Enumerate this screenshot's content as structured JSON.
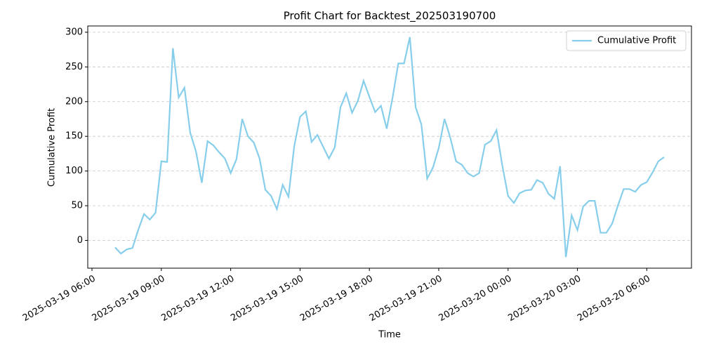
{
  "chart_data": {
    "type": "line",
    "title": "Profit Chart for Backtest_202503190700",
    "x_label": "Time",
    "y_label": "Cumulative Profit",
    "x": [
      "2025-03-19 07:00",
      "2025-03-19 07:15",
      "2025-03-19 07:30",
      "2025-03-19 07:45",
      "2025-03-19 08:00",
      "2025-03-19 08:15",
      "2025-03-19 08:30",
      "2025-03-19 08:45",
      "2025-03-19 09:00",
      "2025-03-19 09:15",
      "2025-03-19 09:30",
      "2025-03-19 09:45",
      "2025-03-19 10:00",
      "2025-03-19 10:15",
      "2025-03-19 10:30",
      "2025-03-19 10:45",
      "2025-03-19 11:00",
      "2025-03-19 11:15",
      "2025-03-19 11:30",
      "2025-03-19 11:45",
      "2025-03-19 12:00",
      "2025-03-19 12:15",
      "2025-03-19 12:30",
      "2025-03-19 12:45",
      "2025-03-19 13:00",
      "2025-03-19 13:15",
      "2025-03-19 13:30",
      "2025-03-19 13:45",
      "2025-03-19 14:00",
      "2025-03-19 14:15",
      "2025-03-19 14:30",
      "2025-03-19 14:45",
      "2025-03-19 15:00",
      "2025-03-19 15:15",
      "2025-03-19 15:30",
      "2025-03-19 15:45",
      "2025-03-19 16:00",
      "2025-03-19 16:15",
      "2025-03-19 16:30",
      "2025-03-19 16:45",
      "2025-03-19 17:00",
      "2025-03-19 17:15",
      "2025-03-19 17:30",
      "2025-03-19 17:45",
      "2025-03-19 18:00",
      "2025-03-19 18:15",
      "2025-03-19 18:30",
      "2025-03-19 18:45",
      "2025-03-19 19:00",
      "2025-03-19 19:15",
      "2025-03-19 19:30",
      "2025-03-19 19:45",
      "2025-03-19 20:00",
      "2025-03-19 20:15",
      "2025-03-19 20:30",
      "2025-03-19 20:45",
      "2025-03-19 21:00",
      "2025-03-19 21:15",
      "2025-03-19 21:30",
      "2025-03-19 21:45",
      "2025-03-19 22:00",
      "2025-03-19 22:15",
      "2025-03-19 22:30",
      "2025-03-19 22:45",
      "2025-03-19 23:00",
      "2025-03-19 23:15",
      "2025-03-19 23:30",
      "2025-03-19 23:45",
      "2025-03-20 00:00",
      "2025-03-20 00:15",
      "2025-03-20 00:30",
      "2025-03-20 00:45",
      "2025-03-20 01:00",
      "2025-03-20 01:15",
      "2025-03-20 01:30",
      "2025-03-20 01:45",
      "2025-03-20 02:00",
      "2025-03-20 02:15",
      "2025-03-20 02:30",
      "2025-03-20 02:45",
      "2025-03-20 03:00",
      "2025-03-20 03:15",
      "2025-03-20 03:30",
      "2025-03-20 03:45",
      "2025-03-20 04:00",
      "2025-03-20 04:15",
      "2025-03-20 04:30",
      "2025-03-20 04:45",
      "2025-03-20 05:00",
      "2025-03-20 05:15",
      "2025-03-20 05:30",
      "2025-03-20 05:45",
      "2025-03-20 06:00",
      "2025-03-20 06:15",
      "2025-03-20 06:30",
      "2025-03-20 06:45"
    ],
    "series": [
      {
        "name": "Cumulative Profit",
        "color": "#87ceeb",
        "values": [
          -10,
          -19,
          -13,
          -11,
          15,
          38,
          30,
          40,
          114,
          113,
          277,
          206,
          220,
          155,
          128,
          83,
          143,
          137,
          127,
          118,
          97,
          117,
          175,
          150,
          141,
          118,
          73,
          64,
          45,
          80,
          63,
          136,
          178,
          186,
          142,
          152,
          135,
          118,
          134,
          192,
          212,
          184,
          201,
          230,
          207,
          185,
          194,
          161,
          205,
          255,
          255,
          293,
          192,
          167,
          89,
          105,
          133,
          175,
          148,
          114,
          109,
          97,
          92,
          97,
          138,
          143,
          159,
          108,
          64,
          54,
          68,
          72,
          73,
          87,
          83,
          67,
          60,
          107,
          -24,
          36,
          15,
          49,
          57,
          57,
          11,
          11,
          24,
          50,
          74,
          74,
          70,
          80,
          84,
          98,
          114,
          120
        ]
      }
    ],
    "xlim": [
      "2025-03-19 05:49",
      "2025-03-20 07:56"
    ],
    "xticks": [
      "2025-03-19 06:00",
      "2025-03-19 09:00",
      "2025-03-19 12:00",
      "2025-03-19 15:00",
      "2025-03-19 18:00",
      "2025-03-19 21:00",
      "2025-03-20 00:00",
      "2025-03-20 03:00",
      "2025-03-20 06:00"
    ],
    "ylim": [
      -40,
      309
    ],
    "yticks": [
      0,
      50,
      100,
      150,
      200,
      250,
      300
    ],
    "grid": "y",
    "legend": "upper right"
  }
}
